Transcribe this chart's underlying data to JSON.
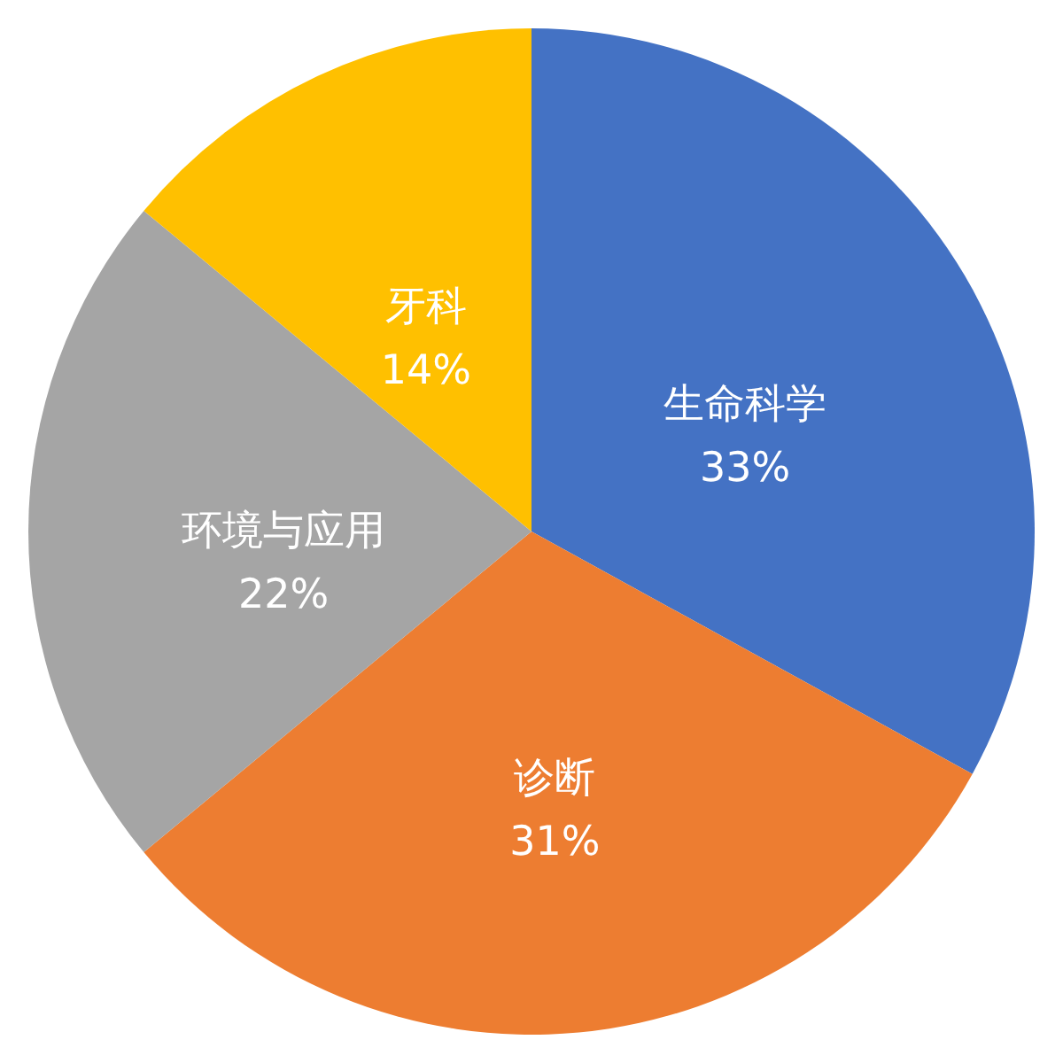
{
  "chart_data": {
    "type": "pie",
    "categories": [
      "生命科学",
      "诊断",
      "环境与应用",
      "牙科"
    ],
    "values": [
      33,
      31,
      22,
      14
    ],
    "colors": [
      "#4472c4",
      "#ed7d31",
      "#a5a5a5",
      "#ffc000"
    ],
    "value_labels": [
      "33%",
      "31%",
      "22%",
      "14%"
    ]
  }
}
